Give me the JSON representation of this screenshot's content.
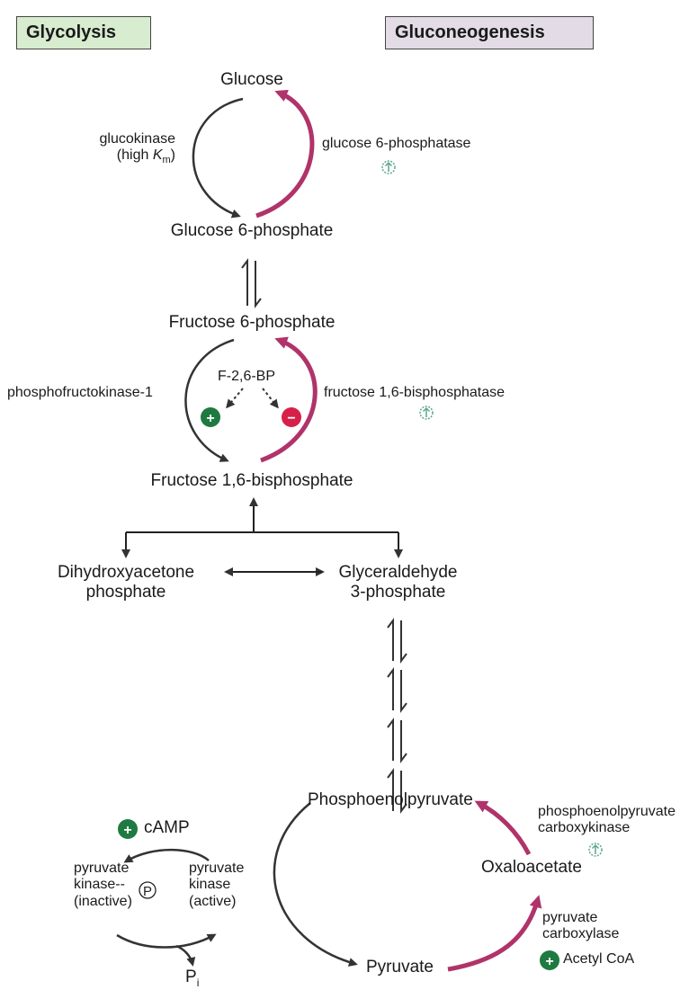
{
  "header": {
    "glycolysis": "Glycolysis",
    "gluconeogenesis": "Gluconeogenesis"
  },
  "metabolites": {
    "glucose": "Glucose",
    "g6p": "Glucose 6-phosphate",
    "f6p": "Fructose 6-phosphate",
    "f16bp": "Fructose 1,6-bisphosphate",
    "dhap_line1": "Dihydroxyacetone",
    "dhap_line2": "phosphate",
    "gap_line1": "Glyceraldehyde",
    "gap_line2": "3-phosphate",
    "pep": "Phosphoenolpyruvate",
    "oxaloacetate": "Oxaloacetate",
    "pyruvate": "Pyruvate"
  },
  "enzymes": {
    "glucokinase_line1": "glucokinase",
    "glucokinase_line2_prefix": "(high ",
    "glucokinase_K": "K",
    "glucokinase_sub": "m",
    "glucokinase_close": ")",
    "g6pase": "glucose 6-phosphatase",
    "pfk1": "phosphofructokinase-1",
    "f16bpase": "fructose 1,6-bisphosphatase",
    "pepck_line1": "phosphoenolpyruvate",
    "pepck_line2": "carboxykinase",
    "pc_line1": "pyruvate",
    "pc_line2": "carboxylase"
  },
  "regulators": {
    "f26bp": "F-2,6-BP",
    "plus": "+",
    "minus": "−",
    "camp": "cAMP",
    "acetyl_coa": "Acetyl CoA",
    "pi_P": "P",
    "pi_sub": "i"
  },
  "pyruvate_kinase": {
    "inactive_line1": "pyruvate",
    "inactive_line2": "kinase--",
    "inactive_P": "P",
    "inactive_line3": "(inactive)",
    "active_line1": "pyruvate",
    "active_line2": "kinase",
    "active_line3": "(active)"
  },
  "colors": {
    "glycolysis_bg": "#d8ecd0",
    "gluconeogenesis_bg": "#e3dbe6",
    "gluconeo_arrow": "#b0336a",
    "plus_circle": "#1e7a40",
    "minus_circle": "#d62049",
    "induce_icon": "#5aa88a",
    "dark_arrow": "#333333"
  }
}
